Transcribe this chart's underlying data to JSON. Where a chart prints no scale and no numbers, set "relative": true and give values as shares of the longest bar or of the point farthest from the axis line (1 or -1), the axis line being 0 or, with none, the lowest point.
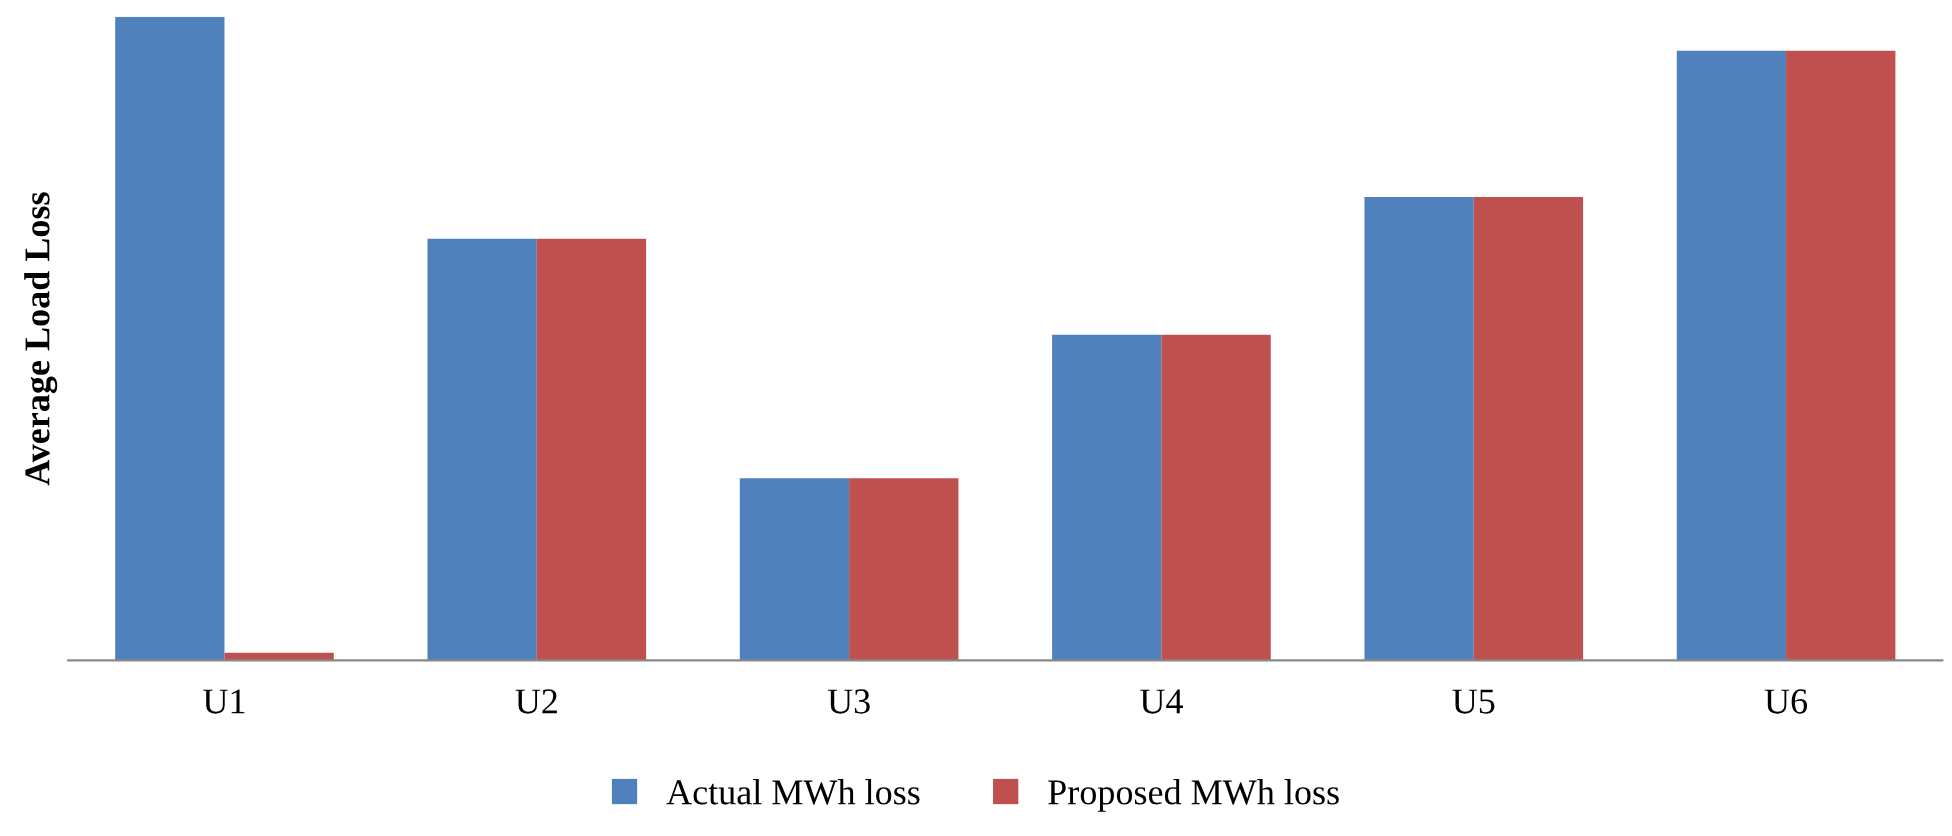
{
  "chart_data": {
    "type": "bar",
    "ylabel": "Average Load Loss",
    "relative": true,
    "categories": [
      "U1",
      "U2",
      "U3",
      "U4",
      "U5",
      "U6"
    ],
    "series": [
      {
        "name": "Actual MWh loss",
        "color": "#4f81bd",
        "values": [
          1,
          0.655,
          0.283,
          0.506,
          0.72,
          0.947
        ]
      },
      {
        "name": "Proposed MWh loss",
        "color": "#c0504d",
        "values": [
          0.012,
          0.655,
          0.283,
          0.506,
          0.72,
          0.947
        ]
      }
    ],
    "legend": "bottom",
    "grid": false
  }
}
